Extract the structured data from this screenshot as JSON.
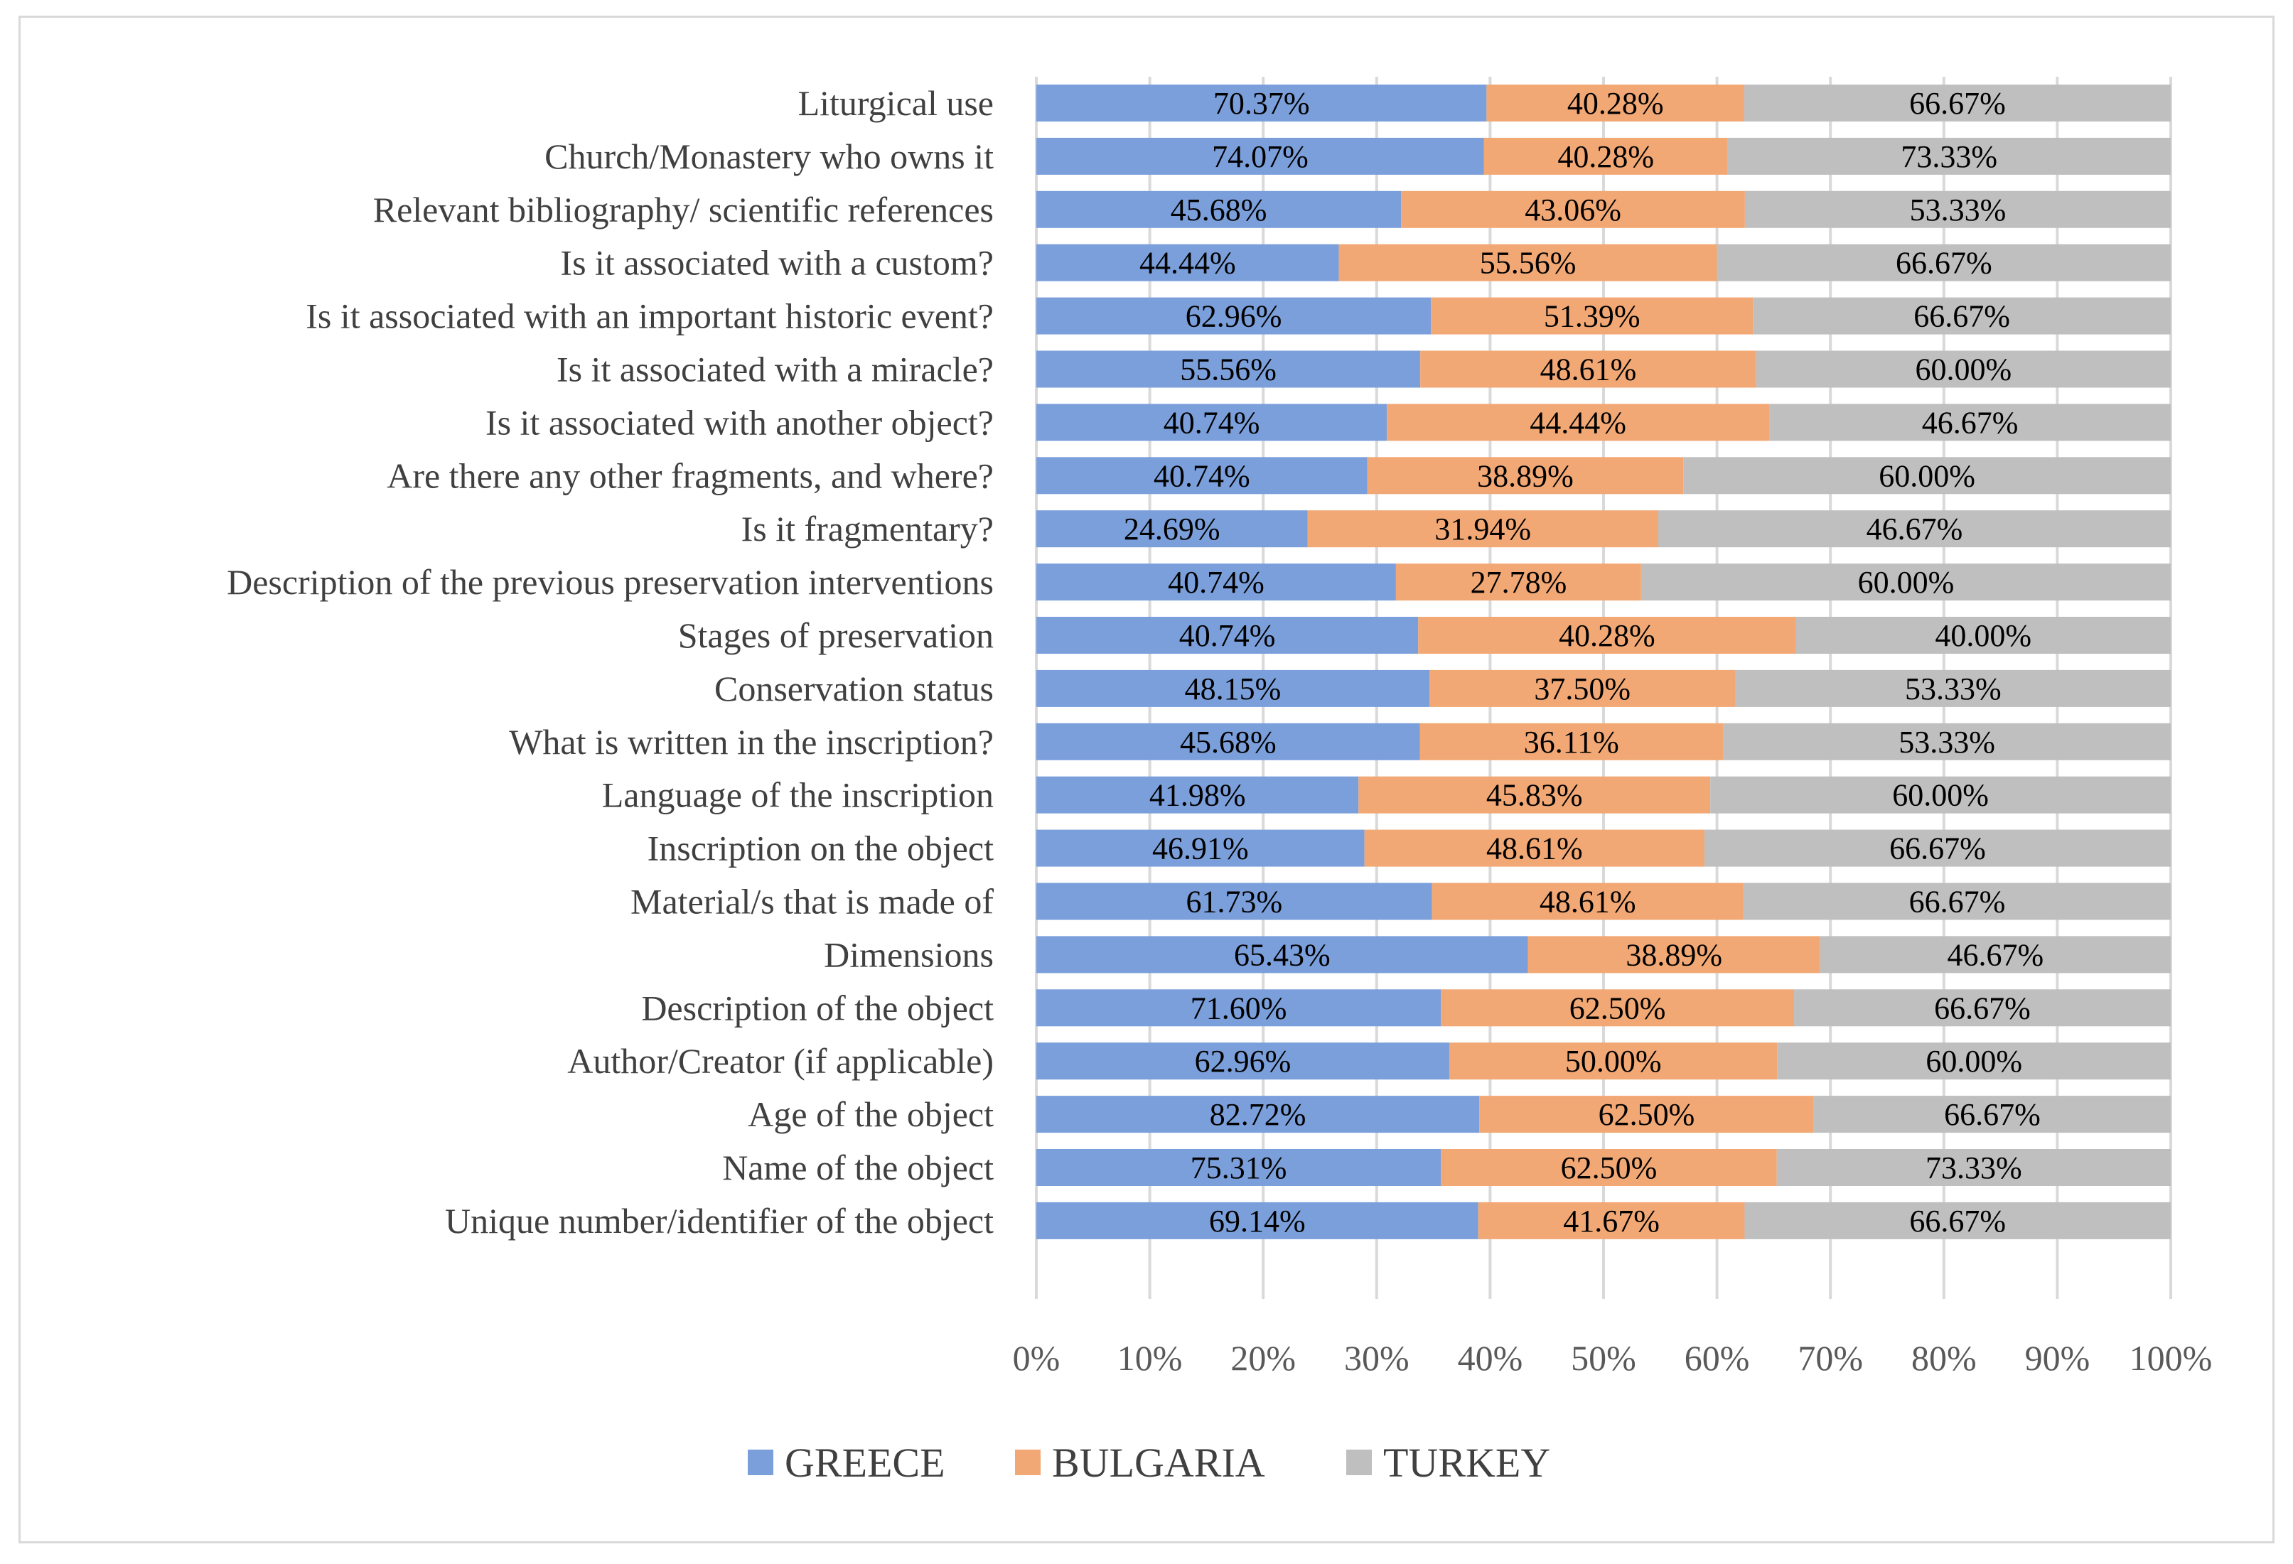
{
  "chart_data": {
    "type": "bar",
    "orientation": "horizontal",
    "stacking": "100% stacked",
    "title": "",
    "xlabel": "",
    "ylabel": "",
    "xlim": [
      0,
      100
    ],
    "x_tick_labels": [
      "0%",
      "10%",
      "20%",
      "30%",
      "40%",
      "50%",
      "60%",
      "70%",
      "80%",
      "90%",
      "100%"
    ],
    "grid": true,
    "legend_position": "bottom",
    "categories": [
      "Liturgical use",
      "Church/Monastery who owns it",
      "Relevant bibliography/ scientific references",
      "Is it associated with a custom?",
      "Is it associated with an important historic event?",
      "Is it associated with a miracle?",
      "Is it associated with another object?",
      "Are there any other fragments, and where?",
      "Is it fragmentary?",
      "Description of the previous preservation interventions",
      "Stages of preservation",
      "Conservation status",
      "What is written in the inscription?",
      "Language of the inscription",
      "Inscription on the object",
      "Material/s that is made of",
      "Dimensions",
      "Description of the object",
      "Author/Creator (if applicable)",
      "Age of the object",
      "Name of the object",
      "Unique number/identifier of the object"
    ],
    "series": [
      {
        "name": "GREECE",
        "color": "#7b9fdb",
        "values": [
          70.37,
          74.07,
          45.68,
          44.44,
          62.96,
          55.56,
          40.74,
          40.74,
          24.69,
          40.74,
          40.74,
          48.15,
          45.68,
          41.98,
          46.91,
          61.73,
          65.43,
          71.6,
          62.96,
          82.72,
          75.31,
          69.14
        ],
        "labels": [
          "70.37%",
          "74.07%",
          "45.68%",
          "44.44%",
          "62.96%",
          "55.56%",
          "40.74%",
          "40.74%",
          "24.69%",
          "40.74%",
          "40.74%",
          "48.15%",
          "45.68%",
          "41.98%",
          "46.91%",
          "61.73%",
          "65.43%",
          "71.60%",
          "62.96%",
          "82.72%",
          "75.31%",
          "69.14%"
        ]
      },
      {
        "name": "BULGARIA",
        "color": "#f2a874",
        "values": [
          40.28,
          40.28,
          43.06,
          55.56,
          51.39,
          48.61,
          44.44,
          38.89,
          31.94,
          27.78,
          40.28,
          37.5,
          36.11,
          45.83,
          48.61,
          48.61,
          38.89,
          62.5,
          50.0,
          62.5,
          62.5,
          41.67
        ],
        "labels": [
          "40.28%",
          "40.28%",
          "43.06%",
          "55.56%",
          "51.39%",
          "48.61%",
          "44.44%",
          "38.89%",
          "31.94%",
          "27.78%",
          "40.28%",
          "37.50%",
          "36.11%",
          "45.83%",
          "48.61%",
          "48.61%",
          "38.89%",
          "62.50%",
          "50.00%",
          "62.50%",
          "62.50%",
          "41.67%"
        ]
      },
      {
        "name": "TURKEY",
        "color": "#bfbfbf",
        "values": [
          66.67,
          73.33,
          53.33,
          66.67,
          66.67,
          60.0,
          46.67,
          60.0,
          46.67,
          60.0,
          40.0,
          53.33,
          53.33,
          60.0,
          66.67,
          66.67,
          46.67,
          66.67,
          60.0,
          66.67,
          73.33,
          66.67
        ],
        "labels": [
          "66.67%",
          "73.33%",
          "53.33%",
          "66.67%",
          "66.67%",
          "60.00%",
          "46.67%",
          "60.00%",
          "46.67%",
          "60.00%",
          "40.00%",
          "53.33%",
          "53.33%",
          "60.00%",
          "66.67%",
          "66.67%",
          "46.67%",
          "66.67%",
          "60.00%",
          "66.67%",
          "73.33%",
          "66.67%"
        ]
      }
    ]
  }
}
